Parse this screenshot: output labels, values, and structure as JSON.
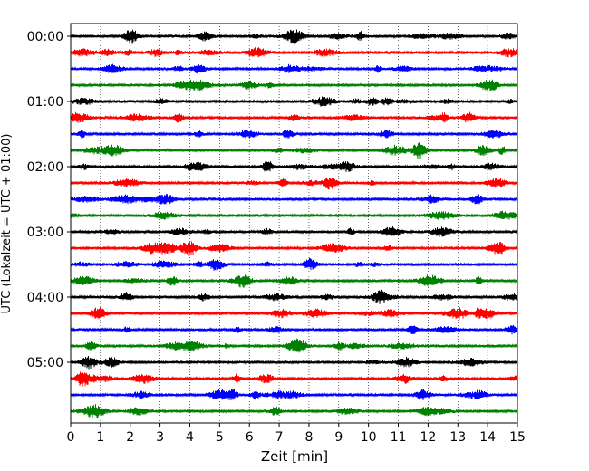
{
  "chart_data": {
    "type": "line",
    "xlabel": "Zeit  [min]",
    "ylabel": "UTC (Lokalzeit = UTC + 01:00)",
    "xlim": [
      0,
      15
    ],
    "x_ticks": [
      "0",
      "1",
      "2",
      "3",
      "4",
      "5",
      "6",
      "7",
      "8",
      "9",
      "10",
      "11",
      "12",
      "13",
      "14",
      "15"
    ],
    "y_tick_labels": [
      "00:00",
      "01:00",
      "02:00",
      "03:00",
      "04:00",
      "05:00"
    ],
    "trace_start_times": [
      "00:00",
      "00:15",
      "00:30",
      "00:45",
      "01:00",
      "01:15",
      "01:30",
      "01:45",
      "02:00",
      "02:15",
      "02:30",
      "02:45",
      "03:00",
      "03:15",
      "03:30",
      "03:45",
      "04:00",
      "04:15",
      "04:30",
      "04:45",
      "05:00",
      "05:15",
      "05:30",
      "05:45"
    ],
    "trace_colors": [
      "#000000",
      "#ff0000",
      "#0000ff",
      "#008000"
    ],
    "vertical_grid": "dotted at every minute",
    "horizontal_grid": false,
    "legend": "none"
  }
}
